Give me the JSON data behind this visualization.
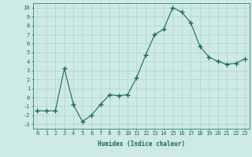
{
  "x": [
    0,
    1,
    2,
    3,
    4,
    5,
    6,
    7,
    8,
    9,
    10,
    11,
    12,
    13,
    14,
    15,
    16,
    17,
    18,
    19,
    20,
    21,
    22,
    23
  ],
  "y": [
    -1.5,
    -1.5,
    -1.5,
    3.2,
    -0.8,
    -2.7,
    -2.0,
    -0.8,
    0.3,
    0.2,
    0.3,
    2.2,
    4.7,
    7.0,
    7.6,
    10.0,
    9.5,
    8.3,
    5.7,
    4.5,
    4.0,
    3.7,
    3.8,
    4.3
  ],
  "line_color": "#1a6b5a",
  "marker": "+",
  "marker_size": 4,
  "bg_color": "#ceeae4",
  "grid_color": "#b0d4cc",
  "xlabel": "Humidex (Indice chaleur)",
  "xlim": [
    -0.5,
    23.5
  ],
  "ylim": [
    -3.5,
    10.5
  ],
  "yticks": [
    -3,
    -2,
    -1,
    0,
    1,
    2,
    3,
    4,
    5,
    6,
    7,
    8,
    9,
    10
  ],
  "xticks": [
    0,
    1,
    2,
    3,
    4,
    5,
    6,
    7,
    8,
    9,
    10,
    11,
    12,
    13,
    14,
    15,
    16,
    17,
    18,
    19,
    20,
    21,
    22,
    23
  ],
  "label_fontsize": 5.5,
  "tick_fontsize": 5
}
